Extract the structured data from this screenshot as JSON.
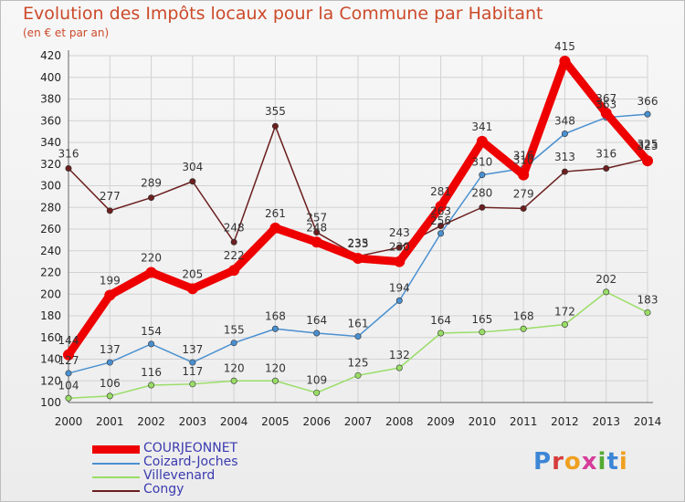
{
  "title": "Evolution des Impôts locaux pour la Commune par Habitant",
  "subtitle": "(en € et par an)",
  "brand": "Proxiti",
  "chart_data": {
    "type": "line",
    "title": "Evolution des Impôts locaux pour la Commune par Habitant",
    "subtitle": "(en € et par an)",
    "xlabel": "",
    "ylabel": "",
    "ylim": [
      100,
      420
    ],
    "yticks": [
      100,
      120,
      140,
      160,
      180,
      200,
      220,
      240,
      260,
      280,
      300,
      320,
      340,
      360,
      380,
      400,
      420
    ],
    "grid": true,
    "legend_position": "bottom-left",
    "categories": [
      "2000",
      "2001",
      "2002",
      "2003",
      "2004",
      "2005",
      "2006",
      "2007",
      "2008",
      "2009",
      "2010",
      "2011",
      "2012",
      "2013",
      "2014"
    ],
    "series": [
      {
        "name": "COURJEONNET",
        "color": "#ee0000",
        "values": [
          144,
          199,
          220,
          205,
          222,
          261,
          248,
          233,
          230,
          281,
          341,
          310,
          415,
          367,
          323
        ]
      },
      {
        "name": "Coizard-Joches",
        "color": "#4a90d0",
        "values": [
          127,
          137,
          154,
          137,
          155,
          168,
          164,
          161,
          194,
          256,
          310,
          316,
          348,
          363,
          366
        ]
      },
      {
        "name": "Villevenard",
        "color": "#99dd66",
        "values": [
          104,
          106,
          116,
          117,
          120,
          120,
          109,
          125,
          132,
          164,
          165,
          168,
          172,
          202,
          183
        ]
      },
      {
        "name": "Congy",
        "color": "#6b1f1f",
        "values": [
          316,
          277,
          289,
          304,
          248,
          355,
          257,
          235,
          243,
          263,
          280,
          279,
          313,
          316,
          325
        ]
      }
    ]
  }
}
